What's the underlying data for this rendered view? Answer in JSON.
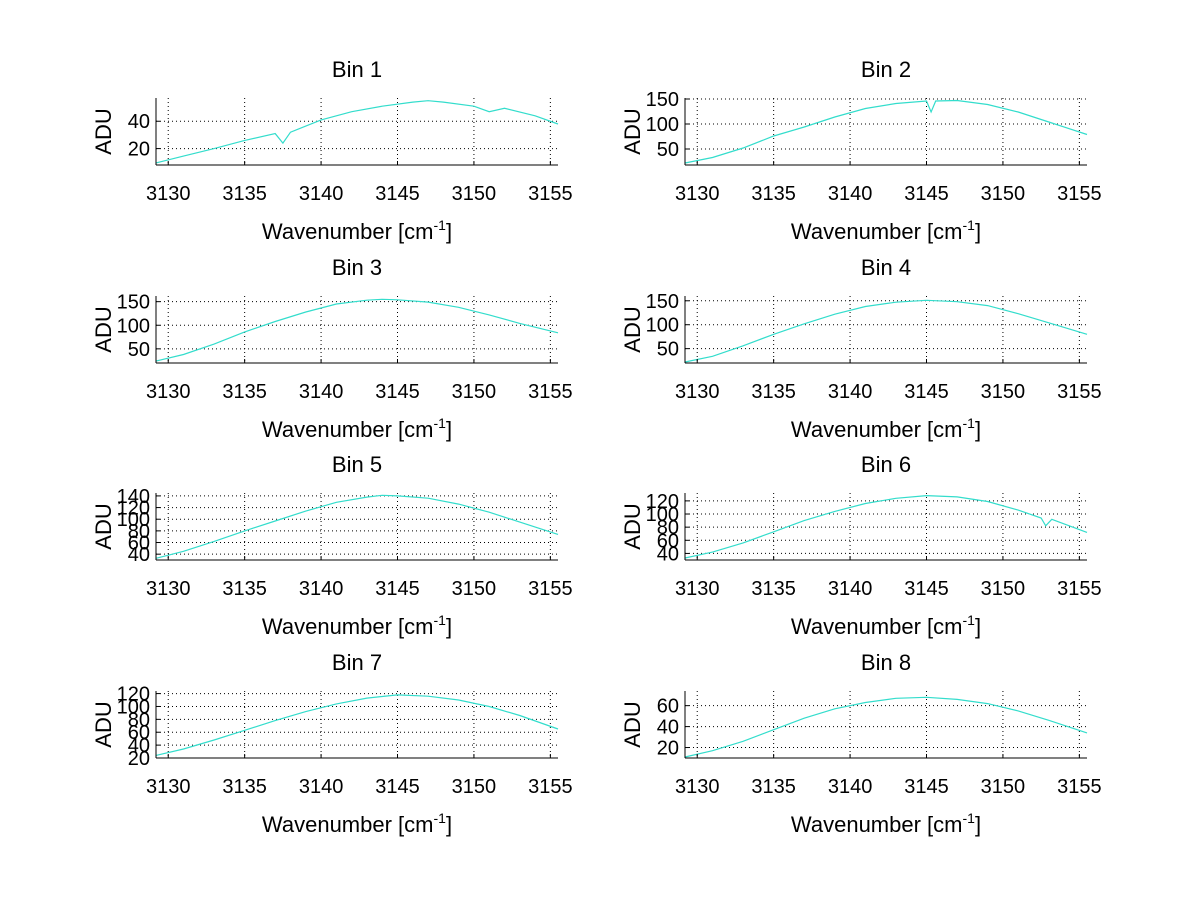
{
  "figure": {
    "background": "#ffffff",
    "line_color": "#33ddcc"
  },
  "chart_data": [
    {
      "type": "line",
      "title": "Bin 1",
      "xlabel": "Wavenumber [cm",
      "xlabel_sup": "-1",
      "xlabel_tail": "]",
      "ylabel": "ADU",
      "xlim": [
        3129.2,
        3155.5
      ],
      "ylim": [
        8,
        57
      ],
      "xticks": [
        3130,
        3135,
        3140,
        3145,
        3150,
        3155
      ],
      "yticks": [
        20,
        40
      ],
      "grid": true,
      "series": [
        {
          "color": "#33ddcc",
          "x": [
            3129.2,
            3131,
            3133,
            3135,
            3137,
            3137.5,
            3138,
            3140,
            3142,
            3144,
            3146,
            3147,
            3148,
            3150,
            3151,
            3152,
            3154,
            3155.5
          ],
          "y": [
            9.5,
            14.5,
            20,
            26,
            31,
            24,
            32,
            41,
            47,
            51,
            54,
            55,
            54,
            51,
            47,
            49.5,
            44,
            38
          ]
        }
      ]
    },
    {
      "type": "line",
      "title": "Bin 2",
      "xlabel": "Wavenumber [cm",
      "xlabel_sup": "-1",
      "xlabel_tail": "]",
      "ylabel": "ADU",
      "xlim": [
        3129.2,
        3155.5
      ],
      "ylim": [
        18,
        152
      ],
      "xticks": [
        3130,
        3135,
        3140,
        3145,
        3150,
        3155
      ],
      "yticks": [
        50,
        100,
        150
      ],
      "grid": true,
      "series": [
        {
          "color": "#33ddcc",
          "x": [
            3129.2,
            3131,
            3133,
            3135,
            3137,
            3139,
            3141,
            3143,
            3145,
            3145.3,
            3145.6,
            3147,
            3149,
            3151,
            3153,
            3155.5
          ],
          "y": [
            22,
            33,
            52,
            76,
            94,
            114,
            131,
            141,
            146,
            124,
            146,
            147,
            139,
            124,
            104,
            79
          ]
        }
      ]
    },
    {
      "type": "line",
      "title": "Bin 3",
      "xlabel": "Wavenumber [cm",
      "xlabel_sup": "-1",
      "xlabel_tail": "]",
      "ylabel": "ADU",
      "xlim": [
        3129.2,
        3155.5
      ],
      "ylim": [
        20,
        162
      ],
      "xticks": [
        3130,
        3135,
        3140,
        3145,
        3150,
        3155
      ],
      "yticks": [
        50,
        100,
        150
      ],
      "grid": true,
      "series": [
        {
          "color": "#33ddcc",
          "x": [
            3129.2,
            3131,
            3133,
            3135,
            3137,
            3139,
            3141,
            3143,
            3144,
            3145,
            3147,
            3149,
            3151,
            3153,
            3155.5
          ],
          "y": [
            24,
            38,
            60,
            86,
            108,
            128,
            145,
            153,
            155,
            154,
            149,
            138,
            122,
            104,
            84
          ]
        }
      ]
    },
    {
      "type": "line",
      "title": "Bin 4",
      "xlabel": "Wavenumber [cm",
      "xlabel_sup": "-1",
      "xlabel_tail": "]",
      "ylabel": "ADU",
      "xlim": [
        3129.2,
        3155.5
      ],
      "ylim": [
        20,
        160
      ],
      "xticks": [
        3130,
        3135,
        3140,
        3145,
        3150,
        3155
      ],
      "yticks": [
        50,
        100,
        150
      ],
      "grid": true,
      "series": [
        {
          "color": "#33ddcc",
          "x": [
            3129.2,
            3131,
            3133,
            3135,
            3137,
            3139,
            3141,
            3143,
            3145,
            3147,
            3149,
            3151,
            3153,
            3155.5
          ],
          "y": [
            22,
            34,
            56,
            80,
            102,
            122,
            138,
            147,
            151,
            148,
            140,
            123,
            104,
            80
          ]
        }
      ]
    },
    {
      "type": "line",
      "title": "Bin 5",
      "xlabel": "Wavenumber [cm",
      "xlabel_sup": "-1",
      "xlabel_tail": "]",
      "ylabel": "ADU",
      "xlim": [
        3129.2,
        3155.5
      ],
      "ylim": [
        30,
        145
      ],
      "xticks": [
        3130,
        3135,
        3140,
        3145,
        3150,
        3155
      ],
      "yticks": [
        40,
        60,
        80,
        100,
        120,
        140
      ],
      "grid": true,
      "series": [
        {
          "color": "#33ddcc",
          "x": [
            3129.2,
            3131,
            3133,
            3135,
            3137,
            3139,
            3141,
            3143,
            3144,
            3145,
            3147,
            3149,
            3151,
            3153,
            3155.5
          ],
          "y": [
            33,
            45,
            62,
            80,
            97,
            114,
            129,
            138,
            141,
            140,
            136,
            126,
            112,
            95,
            74
          ]
        }
      ]
    },
    {
      "type": "line",
      "title": "Bin 6",
      "xlabel": "Wavenumber [cm",
      "xlabel_sup": "-1",
      "xlabel_tail": "]",
      "ylabel": "ADU",
      "xlim": [
        3129.2,
        3155.5
      ],
      "ylim": [
        30,
        132
      ],
      "xticks": [
        3130,
        3135,
        3140,
        3145,
        3150,
        3155
      ],
      "yticks": [
        40,
        60,
        80,
        100,
        120
      ],
      "grid": true,
      "series": [
        {
          "color": "#33ddcc",
          "x": [
            3129.2,
            3131,
            3133,
            3135,
            3137,
            3139,
            3141,
            3143,
            3145,
            3147,
            3149,
            3151,
            3152.5,
            3152.8,
            3153.2,
            3155.5
          ],
          "y": [
            33,
            42,
            56,
            73,
            90,
            104,
            116,
            124,
            128,
            126,
            119,
            106,
            94,
            82,
            92,
            72
          ]
        }
      ]
    },
    {
      "type": "line",
      "title": "Bin 7",
      "xlabel": "Wavenumber [cm",
      "xlabel_sup": "-1",
      "xlabel_tail": "]",
      "ylabel": "ADU",
      "xlim": [
        3129.2,
        3155.5
      ],
      "ylim": [
        20,
        124
      ],
      "xticks": [
        3130,
        3135,
        3140,
        3145,
        3150,
        3155
      ],
      "yticks": [
        20,
        40,
        60,
        80,
        100,
        120
      ],
      "grid": true,
      "series": [
        {
          "color": "#33ddcc",
          "x": [
            3129.2,
            3131,
            3133,
            3135,
            3137,
            3139,
            3141,
            3143,
            3145,
            3147,
            3149,
            3151,
            3153,
            3155.5
          ],
          "y": [
            24,
            34,
            48,
            63,
            78,
            92,
            104,
            113,
            118,
            116,
            110,
            100,
            86,
            65
          ]
        }
      ]
    },
    {
      "type": "line",
      "title": "Bin 8",
      "xlabel": "Wavenumber [cm",
      "xlabel_sup": "-1",
      "xlabel_tail": "]",
      "ylabel": "ADU",
      "xlim": [
        3129.2,
        3155.5
      ],
      "ylim": [
        10,
        74
      ],
      "xticks": [
        3130,
        3135,
        3140,
        3145,
        3150,
        3155
      ],
      "yticks": [
        20,
        40,
        60
      ],
      "grid": true,
      "series": [
        {
          "color": "#33ddcc",
          "x": [
            3129.2,
            3131,
            3133,
            3135,
            3137,
            3139,
            3141,
            3143,
            3145,
            3147,
            3149,
            3151,
            3153,
            3155.5
          ],
          "y": [
            11,
            17,
            26,
            37,
            48,
            57,
            63,
            67,
            68,
            66,
            62,
            55,
            46,
            34
          ]
        }
      ]
    }
  ]
}
